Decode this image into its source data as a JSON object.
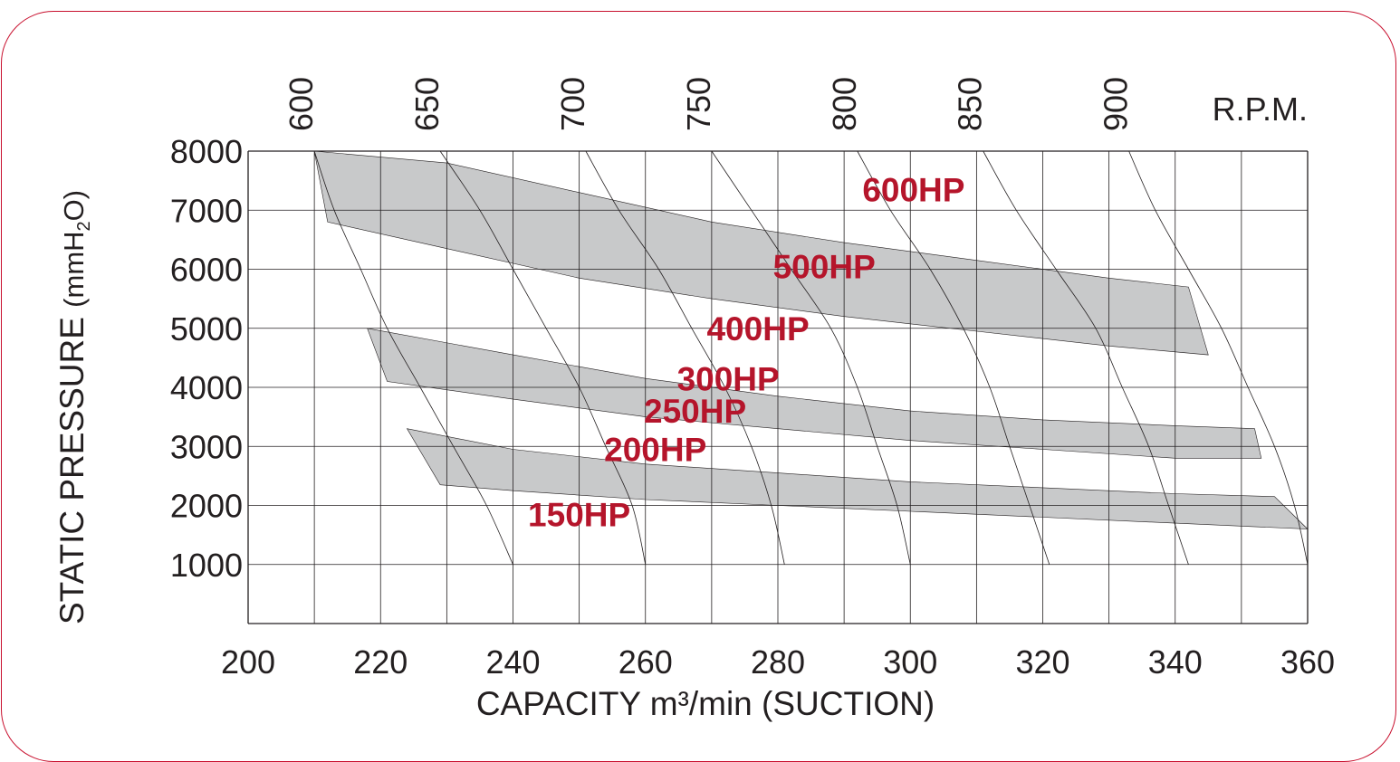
{
  "chart_data": {
    "type": "area",
    "xlabel": "CAPACITY m³/min (SUCTION)",
    "ylabel": {
      "main": "STATIC PRESSURE ",
      "unit_open": "(mmH",
      "unit_sub": "2",
      "unit_close": "O)"
    },
    "top_axis_label": "R.P.M.",
    "xlim": [
      200,
      360
    ],
    "ylim": [
      0,
      8000
    ],
    "x_ticks": [
      "200",
      "220",
      "240",
      "260",
      "280",
      "300",
      "320",
      "340",
      "360"
    ],
    "y_ticks": [
      "1000",
      "2000",
      "3000",
      "4000",
      "5000",
      "6000",
      "7000",
      "8000"
    ],
    "grid": true,
    "rpm_curves": [
      {
        "rpm": "600",
        "points": [
          [
            210,
            8000
          ],
          [
            213,
            7000
          ],
          [
            217,
            6000
          ],
          [
            221,
            5000
          ],
          [
            226,
            4000
          ],
          [
            231,
            3000
          ],
          [
            236,
            2000
          ],
          [
            240,
            1000
          ]
        ]
      },
      {
        "rpm": "650",
        "points": [
          [
            229,
            8000
          ],
          [
            235,
            7000
          ],
          [
            240,
            6000
          ],
          [
            245,
            5000
          ],
          [
            250,
            4000
          ],
          [
            254,
            3000
          ],
          [
            258,
            2000
          ],
          [
            260,
            1000
          ]
        ]
      },
      {
        "rpm": "700",
        "points": [
          [
            251,
            8000
          ],
          [
            256,
            7000
          ],
          [
            262,
            6000
          ],
          [
            267,
            5000
          ],
          [
            272,
            4000
          ],
          [
            276,
            3000
          ],
          [
            279,
            2000
          ],
          [
            281,
            1000
          ]
        ]
      },
      {
        "rpm": "750",
        "points": [
          [
            270,
            8000
          ],
          [
            276,
            7000
          ],
          [
            282,
            6000
          ],
          [
            288,
            5000
          ],
          [
            292,
            4000
          ],
          [
            295,
            3000
          ],
          [
            298,
            2000
          ],
          [
            300,
            1000
          ]
        ]
      },
      {
        "rpm": "800",
        "points": [
          [
            292,
            8000
          ],
          [
            297,
            7000
          ],
          [
            303,
            6000
          ],
          [
            308,
            5000
          ],
          [
            312,
            4000
          ],
          [
            315,
            3000
          ],
          [
            318,
            2000
          ],
          [
            321,
            1000
          ]
        ]
      },
      {
        "rpm": "850",
        "points": [
          [
            311,
            8000
          ],
          [
            316,
            7000
          ],
          [
            322,
            6000
          ],
          [
            328,
            5000
          ],
          [
            332,
            4000
          ],
          [
            336,
            3000
          ],
          [
            339,
            2000
          ],
          [
            342,
            1000
          ]
        ]
      },
      {
        "rpm": "900",
        "points": [
          [
            333,
            8000
          ],
          [
            337,
            7000
          ],
          [
            342,
            6000
          ],
          [
            347,
            5000
          ],
          [
            351,
            4000
          ],
          [
            355,
            3000
          ],
          [
            358,
            2000
          ],
          [
            360,
            1000
          ]
        ]
      }
    ],
    "bands": [
      {
        "upper": [
          [
            210,
            8000
          ],
          [
            230,
            7800
          ],
          [
            250,
            7300
          ],
          [
            270,
            6800
          ],
          [
            290,
            6450
          ],
          [
            310,
            6150
          ],
          [
            330,
            5850
          ],
          [
            342,
            5700
          ]
        ],
        "lower": [
          [
            345,
            4550
          ],
          [
            330,
            4700
          ],
          [
            310,
            4950
          ],
          [
            290,
            5200
          ],
          [
            270,
            5500
          ],
          [
            250,
            5850
          ],
          [
            230,
            6350
          ],
          [
            212,
            6800
          ]
        ]
      },
      {
        "upper": [
          [
            218,
            5000
          ],
          [
            240,
            4550
          ],
          [
            260,
            4150
          ],
          [
            280,
            3850
          ],
          [
            300,
            3600
          ],
          [
            320,
            3450
          ],
          [
            340,
            3350
          ],
          [
            352,
            3300
          ]
        ],
        "lower": [
          [
            353,
            2800
          ],
          [
            340,
            2800
          ],
          [
            320,
            2950
          ],
          [
            300,
            3100
          ],
          [
            280,
            3300
          ],
          [
            260,
            3500
          ],
          [
            240,
            3800
          ],
          [
            221,
            4100
          ]
        ]
      },
      {
        "upper": [
          [
            224,
            3300
          ],
          [
            240,
            2950
          ],
          [
            260,
            2700
          ],
          [
            280,
            2550
          ],
          [
            300,
            2400
          ],
          [
            320,
            2300
          ],
          [
            340,
            2200
          ],
          [
            355,
            2150
          ]
        ],
        "lower": [
          [
            360,
            1600
          ],
          [
            340,
            1700
          ],
          [
            320,
            1800
          ],
          [
            300,
            1900
          ],
          [
            280,
            2000
          ],
          [
            260,
            2100
          ],
          [
            240,
            2250
          ],
          [
            229,
            2350
          ]
        ]
      }
    ],
    "hp_labels": [
      {
        "text": "600HP",
        "x": 300.5,
        "y": 7150
      },
      {
        "text": "500HP",
        "x": 287,
        "y": 5850
      },
      {
        "text": "400HP",
        "x": 277,
        "y": 4800
      },
      {
        "text": "300HP",
        "x": 272.5,
        "y": 3950
      },
      {
        "text": "250HP",
        "x": 267.5,
        "y": 3400
      },
      {
        "text": "200HP",
        "x": 261.5,
        "y": 2750
      },
      {
        "text": "150HP",
        "x": 250,
        "y": 1650
      }
    ]
  }
}
